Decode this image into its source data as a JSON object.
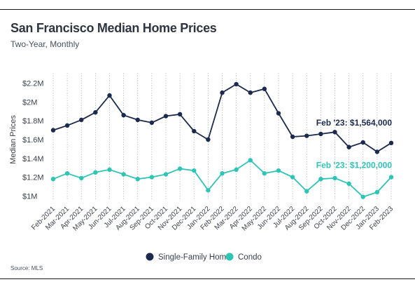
{
  "header": {
    "title": "San Francisco Median Home Prices",
    "subtitle": "Two-Year, Monthly"
  },
  "footer": {
    "source": "Source: MLS"
  },
  "colors": {
    "single_family": "#1b2a4e",
    "condo": "#2ec4b6",
    "grid": "#b9b9b9",
    "text": "#3a3f47"
  },
  "chart_data": {
    "type": "line",
    "categories": [
      "Feb-2021",
      "Mar-2021",
      "Apr-2021",
      "May-2021",
      "Jun-2021",
      "Jul-2021",
      "Aug-2021",
      "Sep-2021",
      "Oct-2021",
      "Nov-2021",
      "Dec-2021",
      "Jan-2022",
      "Feb-2022",
      "Mar-2022",
      "Apr-2022",
      "May-2022",
      "Jun-2022",
      "Jul-2022",
      "Aug-2022",
      "Sep-2022",
      "Oct-2022",
      "Nov-2022",
      "Dec-2022",
      "Jan-2023",
      "Feb-2023"
    ],
    "series": [
      {
        "name": "Single-Family Home",
        "values": [
          1.7,
          1.75,
          1.81,
          1.89,
          2.07,
          1.86,
          1.81,
          1.78,
          1.85,
          1.87,
          1.69,
          1.6,
          2.1,
          2.19,
          2.1,
          2.14,
          1.88,
          1.63,
          1.64,
          1.66,
          1.68,
          1.52,
          1.57,
          1.47,
          1.564
        ],
        "end_label": "Feb '23: $1,564,000"
      },
      {
        "name": "Condo",
        "values": [
          1.18,
          1.24,
          1.19,
          1.25,
          1.28,
          1.23,
          1.18,
          1.2,
          1.23,
          1.29,
          1.27,
          1.06,
          1.24,
          1.28,
          1.38,
          1.24,
          1.27,
          1.2,
          1.05,
          1.18,
          1.19,
          1.13,
          0.99,
          1.04,
          1.2
        ],
        "end_label": "Feb '23: $1,200,000"
      }
    ],
    "ylabel": "Median Prices",
    "yticks": [
      1.0,
      1.2,
      1.4,
      1.6,
      1.8,
      2.0,
      2.2
    ],
    "ytick_labels": [
      "$1M",
      "$1.2M",
      "$1.4M",
      "$1.6M",
      "$1.8M",
      "$2M",
      "$2.2M"
    ],
    "ylim": [
      0.95,
      2.25
    ],
    "grid": "vertical",
    "legend": "bottom-center"
  }
}
